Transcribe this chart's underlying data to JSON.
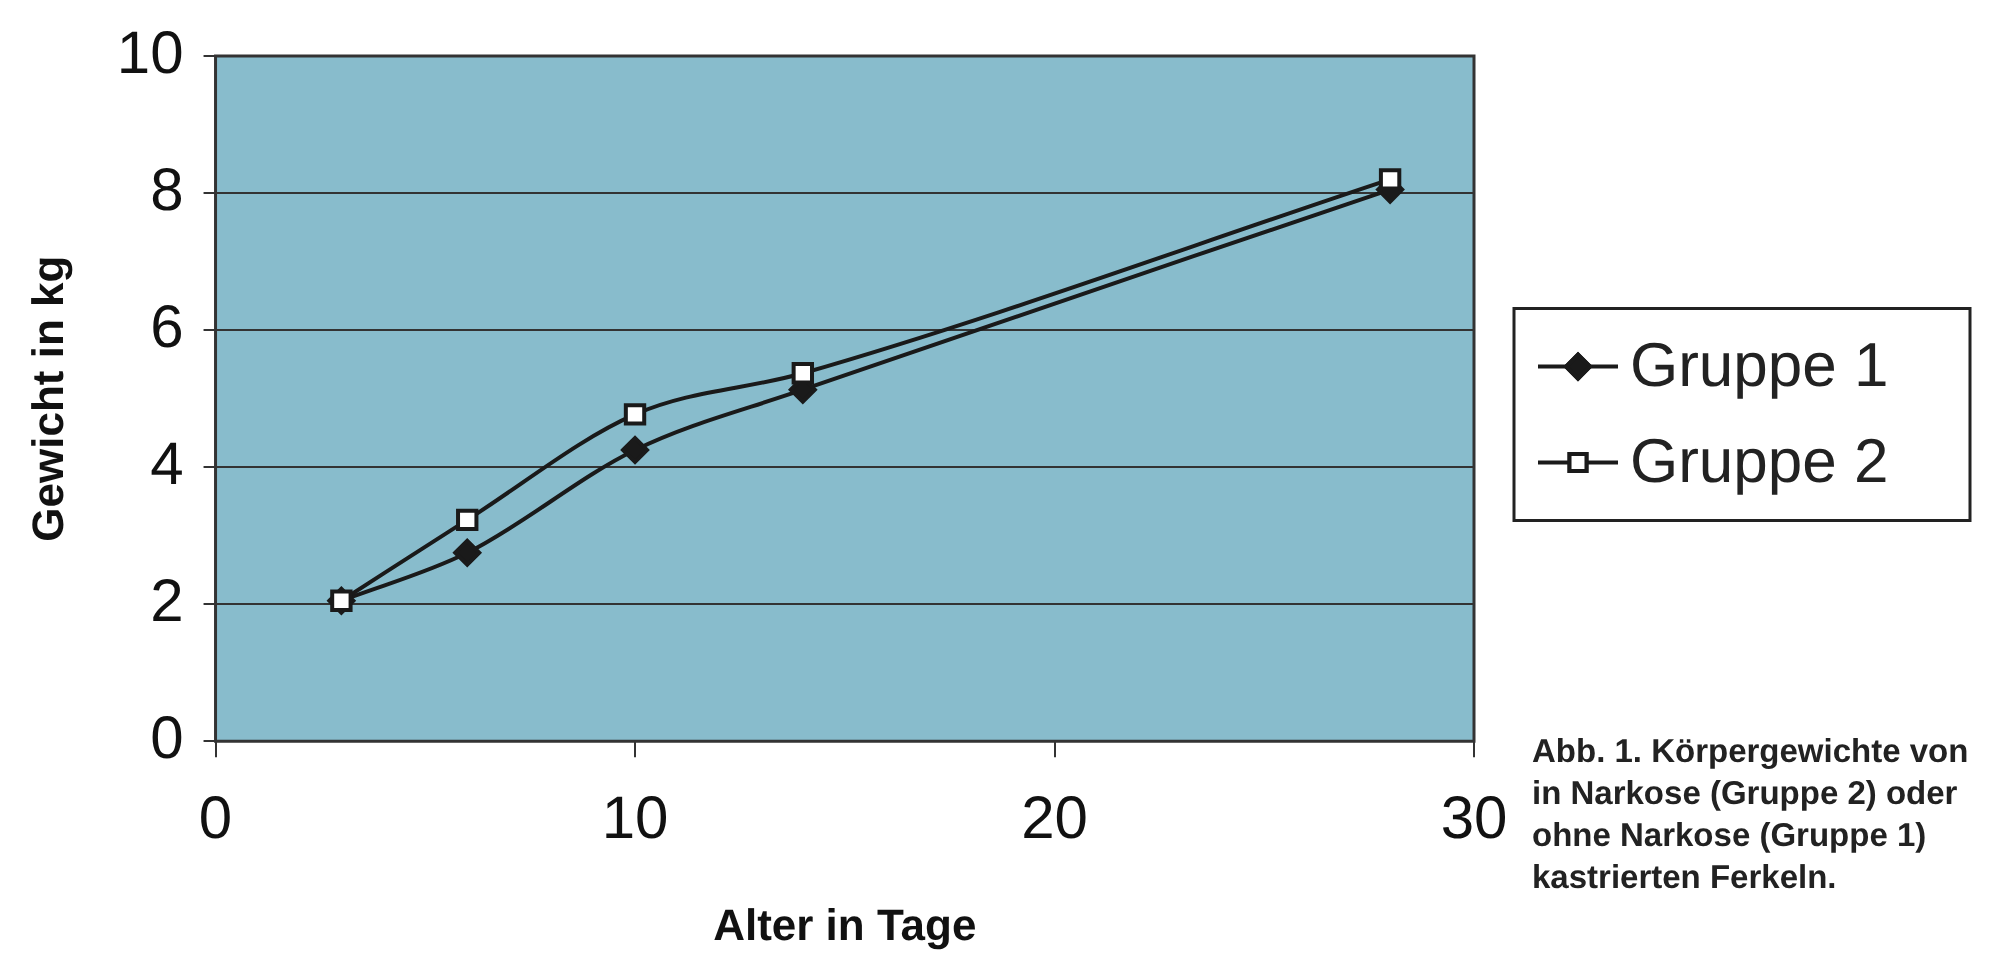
{
  "chart_data": {
    "type": "line",
    "xlabel": "Alter in Tage",
    "ylabel": "Gewicht in kg",
    "xlim": [
      0,
      30
    ],
    "xticks": [
      0,
      10,
      20,
      30
    ],
    "ylim": [
      0,
      10
    ],
    "yticks": [
      0,
      2,
      4,
      6,
      8,
      10
    ],
    "grid": "y",
    "legend": "right",
    "line_style": "solid",
    "series": [
      {
        "name": "Gruppe 1",
        "color": "#1a1a1a",
        "marker": "diamond",
        "x": [
          3,
          6,
          10,
          14,
          28
        ],
        "values": [
          2.05,
          2.75,
          4.25,
          5.13,
          8.05
        ]
      },
      {
        "name": "Gruppe 2",
        "color": "#1a1a1a",
        "marker": "square",
        "x": [
          3,
          6,
          10,
          14,
          28
        ],
        "values": [
          2.05,
          3.23,
          4.77,
          5.37,
          8.2
        ]
      }
    ],
    "annotations": [
      "Abb. 1. Körpergewichte von in Narkose (Gruppe 2) oder ohne Narkose (Gruppe 1) kastrierten Ferkeln."
    ]
  }
}
